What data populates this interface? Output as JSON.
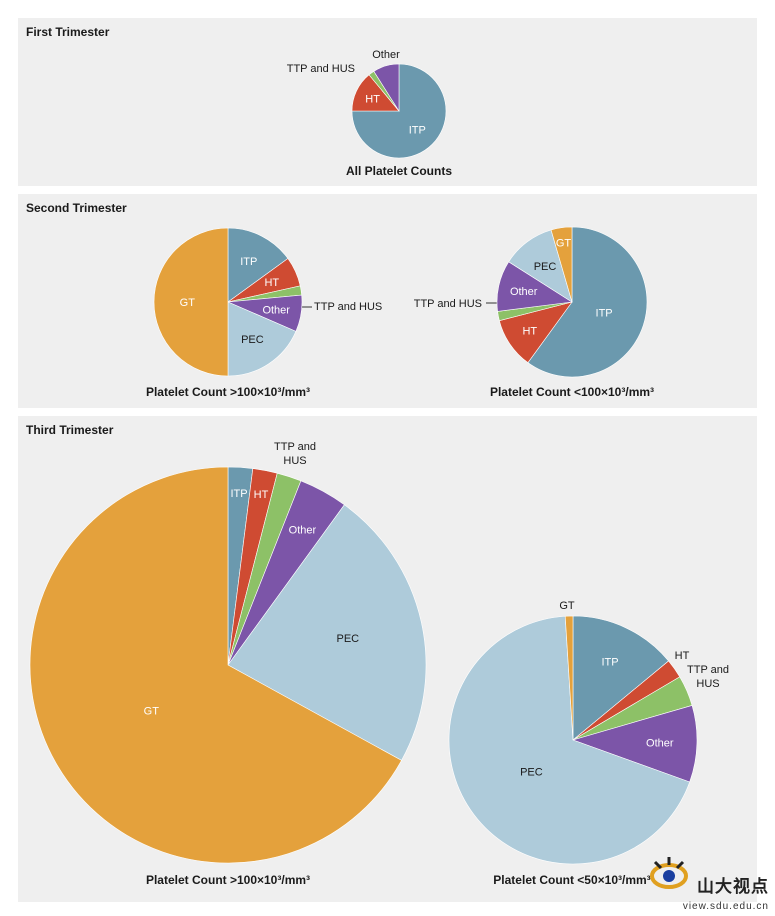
{
  "colors": {
    "ITP": "#6b99ae",
    "HT": "#cf4b32",
    "TTP and HUS": "#8dc167",
    "Other": "#7c55a8",
    "PEC": "#aecbda",
    "GT": "#e4a13c"
  },
  "panels": [
    {
      "title": "First Trimester"
    },
    {
      "title": "Second Trimester"
    },
    {
      "title": "Third Trimester"
    }
  ],
  "chart_data": [
    {
      "type": "pie",
      "panel": "First Trimester",
      "title": "All Platelet Counts",
      "slices": [
        {
          "label": "ITP",
          "value": 75.0
        },
        {
          "label": "HT",
          "value": 14.0
        },
        {
          "label": "TTP and HUS",
          "value": 2.0
        },
        {
          "label": "Other",
          "value": 9.0
        }
      ]
    },
    {
      "type": "pie",
      "panel": "Second Trimester",
      "title": "Platelet Count >100×10³/mm³",
      "slices": [
        {
          "label": "ITP",
          "value": 15.0
        },
        {
          "label": "HT",
          "value": 6.5
        },
        {
          "label": "TTP and HUS",
          "value": 2.0
        },
        {
          "label": "Other",
          "value": 8.0
        },
        {
          "label": "PEC",
          "value": 18.5
        },
        {
          "label": "GT",
          "value": 50.0
        }
      ]
    },
    {
      "type": "pie",
      "panel": "Second Trimester",
      "title": "Platelet Count <100×10³/mm³",
      "slices": [
        {
          "label": "ITP",
          "value": 60.0
        },
        {
          "label": "HT",
          "value": 11.0
        },
        {
          "label": "TTP and HUS",
          "value": 2.0
        },
        {
          "label": "Other",
          "value": 11.0
        },
        {
          "label": "PEC",
          "value": 11.5
        },
        {
          "label": "GT",
          "value": 4.5
        }
      ]
    },
    {
      "type": "pie",
      "panel": "Third Trimester",
      "title": "Platelet Count >100×10³/mm³",
      "slices": [
        {
          "label": "ITP",
          "value": 2.0
        },
        {
          "label": "HT",
          "value": 2.0
        },
        {
          "label": "TTP and HUS",
          "value": 2.0
        },
        {
          "label": "Other",
          "value": 4.0
        },
        {
          "label": "PEC",
          "value": 23.0
        },
        {
          "label": "GT",
          "value": 67.0
        }
      ]
    },
    {
      "type": "pie",
      "panel": "Third Trimester",
      "title": "Platelet Count <50×10³/mm³",
      "slices": [
        {
          "label": "ITP",
          "value": 14.0
        },
        {
          "label": "HT",
          "value": 2.5
        },
        {
          "label": "TTP and HUS",
          "value": 4.0
        },
        {
          "label": "Other",
          "value": 10.0
        },
        {
          "label": "PEC",
          "value": 68.5
        },
        {
          "label": "GT",
          "value": 1.0
        }
      ]
    }
  ],
  "watermark": {
    "text": "山大视点",
    "url": "view.sdu.edu.cn"
  }
}
